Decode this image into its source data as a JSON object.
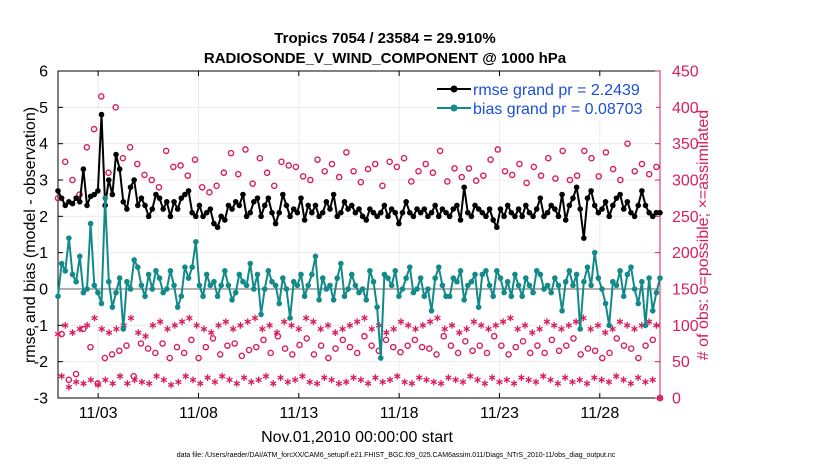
{
  "chart_data": {
    "type": "line",
    "title_line1": "Tropics 7054 / 23584 = 29.910%",
    "title_line2": "RADIOSONDE_V_WIND_COMPONENT @ 1000 hPa",
    "xlabel": "Nov.01,2010 00:00:00 start",
    "ylabel_left": "rmse and bias (model - observation)",
    "ylabel_right": "# of obs: o=possible; ×=assimilated",
    "footnote": "data file: /Users/raeder/DAI/ATM_forcXX/CAM6_setup/f.e21.FHIST_BGC.f09_025.CAM6assim.011/Diags_NTrS_2010-11/obs_diag_output.nc",
    "x_range_days": [
      1.0,
      31.0
    ],
    "x_tick_days": [
      3,
      8,
      13,
      18,
      23,
      28
    ],
    "x_tick_labels": [
      "11/03",
      "11/08",
      "11/13",
      "11/18",
      "11/23",
      "11/28"
    ],
    "ylim_left": [
      -3,
      6
    ],
    "left_ticks": [
      "-3",
      "-2",
      "-1",
      "0",
      "1",
      "2",
      "3",
      "4",
      "5",
      "6"
    ],
    "ylim_right": [
      0,
      450
    ],
    "right_ticks": [
      "0",
      "50",
      "100",
      "150",
      "200",
      "250",
      "300",
      "350",
      "400",
      "450"
    ],
    "series": [
      {
        "name": "rmse",
        "legend": "rmse grand pr = 2.2439",
        "color": "#000000",
        "values": [
          2.7,
          2.5,
          2.3,
          2.4,
          2.35,
          2.5,
          2.4,
          3.3,
          2.3,
          2.55,
          2.6,
          2.7,
          4.8,
          2.3,
          3.0,
          2.6,
          3.7,
          3.3,
          2.4,
          2.2,
          2.8,
          3.0,
          2.3,
          2.5,
          2.3,
          2.0,
          2.2,
          2.6,
          2.5,
          2.2,
          2.4,
          2.0,
          2.4,
          2.2,
          2.5,
          2.6,
          2.7,
          2.1,
          2.0,
          2.3,
          2.0,
          2.1,
          2.2,
          1.8,
          1.7,
          2.0,
          1.9,
          2.3,
          2.2,
          2.4,
          2.3,
          2.6,
          2.0,
          2.1,
          2.4,
          2.5,
          2.0,
          2.3,
          2.5,
          2.1,
          1.8,
          2.1,
          2.6,
          2.3,
          2.0,
          2.2,
          2.1,
          2.5,
          1.9,
          2.3,
          2.1,
          2.3,
          2.0,
          2.1,
          2.4,
          2.2,
          2.6,
          2.0,
          2.1,
          2.4,
          2.2,
          2.3,
          2.1,
          2.2,
          2.0,
          1.9,
          2.2,
          2.1,
          2.0,
          2.1,
          2.3,
          2.0,
          2.2,
          2.1,
          1.8,
          2.1,
          2.4,
          2.1,
          2.0,
          2.2,
          2.1,
          2.2,
          2.0,
          2.1,
          2.3,
          2.0,
          2.2,
          2.1,
          2.0,
          2.2,
          2.3,
          1.9,
          2.8,
          2.1,
          2.0,
          2.3,
          2.2,
          2.1,
          2.0,
          2.2,
          1.9,
          1.7,
          2.2,
          2.0,
          2.3,
          2.1,
          2.0,
          2.2,
          2.0,
          2.3,
          2.1,
          2.0,
          2.2,
          2.5,
          2.0,
          2.1,
          2.3,
          2.2,
          2.0,
          2.6,
          1.9,
          2.3,
          2.5,
          2.8,
          2.2,
          1.4,
          2.5,
          2.7,
          2.3,
          2.1,
          2.2,
          2.4,
          2.0,
          2.3,
          2.5,
          2.6,
          2.2,
          2.4,
          2.1,
          2.0,
          2.3,
          2.7,
          2.3,
          2.1,
          2.0,
          2.1,
          2.1
        ]
      },
      {
        "name": "bias",
        "legend": "bias grand pr = 0.08703",
        "color": "#138a8a",
        "values": [
          -0.2,
          0.7,
          0.5,
          1.4,
          0.4,
          0.2,
          0.9,
          -0.1,
          0.0,
          1.8,
          0.1,
          -0.1,
          -0.4,
          2.5,
          0.2,
          -0.5,
          -0.1,
          0.3,
          -1.1,
          0.2,
          0.0,
          0.8,
          0.6,
          0.1,
          -0.2,
          0.4,
          0.0,
          0.5,
          0.3,
          -0.1,
          0.0,
          0.5,
          0.1,
          -0.5,
          -0.2,
          0.6,
          0.3,
          0.6,
          1.3,
          0.1,
          -0.2,
          0.4,
          0.1,
          0.2,
          -0.2,
          0.1,
          0.5,
          0.1,
          -0.3,
          -0.1,
          0.4,
          0.2,
          0.1,
          0.7,
          0.0,
          0.4,
          -0.7,
          0.0,
          0.5,
          0.2,
          0.1,
          -0.4,
          0.3,
          0.0,
          -0.8,
          0.2,
          0.1,
          0.4,
          -0.2,
          0.1,
          0.4,
          0.9,
          -0.3,
          0.3,
          0.0,
          0.1,
          -0.3,
          0.3,
          0.7,
          -0.2,
          0.0,
          0.4,
          0.1,
          -0.1,
          0.0,
          -0.3,
          0.5,
          0.2,
          -0.5,
          -1.9,
          0.4,
          0.3,
          0.1,
          0.5,
          -0.2,
          0.0,
          0.3,
          0.6,
          -0.1,
          0.0,
          0.3,
          -0.2,
          0.0,
          -0.6,
          0.3,
          0.6,
          0.1,
          -0.2,
          -0.2,
          0.3,
          0.2,
          0.5,
          -0.3,
          0.1,
          0.2,
          0.4,
          -0.5,
          0.4,
          0.5,
          0.1,
          -0.2,
          0.5,
          0.3,
          -0.1,
          0.2,
          -0.2,
          0.4,
          0.1,
          -0.2,
          0.3,
          0.1,
          -0.1,
          0.5,
          0.4,
          0.0,
          0.1,
          -0.1,
          0.3,
          0.1,
          -0.6,
          0.2,
          0.5,
          0.1,
          0.4,
          -1.1,
          0.2,
          0.6,
          0.1,
          1.0,
          0.3,
          0.0,
          -0.4,
          -1.0,
          0.2,
          0.1,
          0.5,
          -0.2,
          0.4,
          0.6,
          0.0,
          -0.4,
          0.2,
          -1.0,
          0.3,
          -0.6,
          -0.1,
          0.3
        ]
      },
      {
        "name": "obs_possible",
        "color": "#d81e5b",
        "marker": "circle",
        "values": [
          275,
          88,
          325,
          25,
          300,
          33,
          280,
          95,
          345,
          70,
          370,
          20,
          415,
          55,
          310,
          60,
          400,
          65,
          330,
          72,
          345,
          30,
          322,
          75,
          307,
          68,
          300,
          62,
          290,
          75,
          340,
          55,
          318,
          70,
          320,
          62,
          306,
          80,
          328,
          55,
          290,
          70,
          283,
          82,
          292,
          60,
          310,
          72,
          337,
          75,
          308,
          58,
          342,
          66,
          295,
          70,
          330,
          80,
          310,
          62,
          292,
          85,
          325,
          68,
          320,
          60,
          318,
          73,
          305,
          82,
          300,
          60,
          328,
          72,
          312,
          55,
          322,
          68,
          304,
          80,
          338,
          70,
          312,
          62,
          297,
          85,
          315,
          72,
          322,
          65,
          292,
          80,
          325,
          70,
          318,
          63,
          330,
          72,
          298,
          80,
          312,
          70,
          322,
          68,
          310,
          60,
          340,
          85,
          298,
          72,
          316,
          62,
          304,
          78,
          316,
          65,
          299,
          72,
          306,
          62,
          328,
          85,
          342,
          72,
          312,
          60,
          307,
          70,
          322,
          78,
          296,
          62,
          318,
          72,
          306,
          62,
          330,
          80,
          302,
          65,
          340,
          72,
          300,
          82,
          306,
          60,
          340,
          68,
          330,
          65,
          305,
          55,
          338,
          62,
          315,
          82,
          300,
          72,
          350,
          68,
          312,
          55,
          322,
          72,
          308,
          80,
          318,
          0
        ]
      },
      {
        "name": "obs_assimilated",
        "color": "#d81e5b",
        "marker": "star",
        "values": [
          88,
          30,
          100,
          15,
          90,
          22,
          95,
          20,
          100,
          25,
          110,
          18,
          95,
          25,
          90,
          20,
          95,
          30,
          100,
          20,
          110,
          25,
          90,
          22,
          85,
          20,
          100,
          30,
          105,
          25,
          95,
          18,
          100,
          22,
          105,
          30,
          110,
          25,
          100,
          20,
          95,
          28,
          90,
          22,
          100,
          30,
          105,
          25,
          95,
          20,
          100,
          28,
          105,
          22,
          110,
          25,
          95,
          30,
          100,
          20,
          90,
          28,
          105,
          22,
          100,
          25,
          95,
          30,
          110,
          22,
          105,
          20,
          95,
          28,
          100,
          25,
          90,
          20,
          95,
          22,
          100,
          28,
          105,
          25,
          110,
          20,
          95,
          28,
          100,
          22,
          90,
          25,
          95,
          30,
          105,
          22,
          100,
          20,
          95,
          28,
          100,
          25,
          105,
          22,
          110,
          20,
          95,
          28,
          100,
          25,
          90,
          22,
          95,
          30,
          105,
          25,
          100,
          20,
          95,
          28,
          100,
          22,
          105,
          25,
          110,
          20,
          95,
          28,
          100,
          25,
          90,
          22,
          95,
          30,
          105,
          25,
          100,
          20,
          95,
          28,
          100,
          22,
          105,
          25,
          110,
          20,
          95,
          28,
          100,
          25,
          90,
          22,
          95,
          30,
          105,
          25,
          100,
          20,
          95,
          28,
          100,
          22,
          105,
          25,
          100,
          0
        ]
      }
    ]
  }
}
